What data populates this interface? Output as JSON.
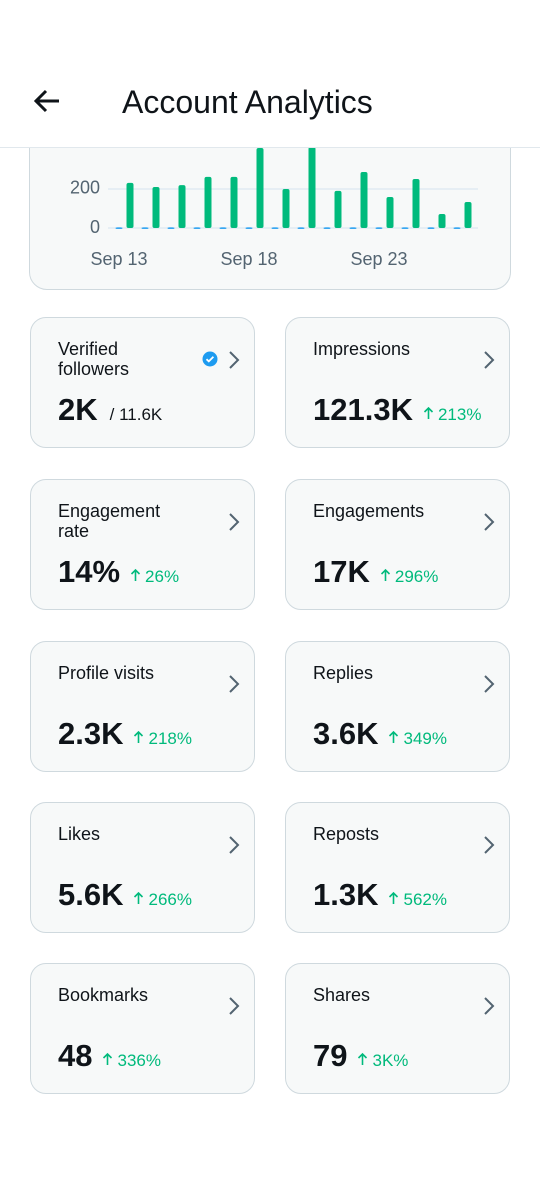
{
  "header": {
    "title": "Account Analytics"
  },
  "chart_data": {
    "type": "bar",
    "categories": [
      "Sep 13",
      null,
      null,
      null,
      null,
      "Sep 18",
      null,
      null,
      null,
      null,
      "Sep 23",
      null,
      null,
      null
    ],
    "series": [
      {
        "color": "#1d9bf0",
        "values": [
          3,
          3,
          3,
          3,
          3,
          3,
          3,
          3,
          3,
          3,
          3,
          3,
          3,
          3
        ]
      },
      {
        "color": "#00ba7c",
        "values": [
          231,
          210,
          220,
          262,
          262,
          410,
          200,
          415,
          190,
          287,
          159,
          251,
          72,
          133
        ]
      }
    ],
    "ylim": [
      0,
      410
    ],
    "yticks": [
      0,
      200
    ],
    "grid": true
  },
  "cards": [
    {
      "label": "Verified followers",
      "value": "2K",
      "total": "/ 11.6K"
    },
    {
      "label": "Impressions",
      "value": "121.3K",
      "change": "213%"
    },
    {
      "label": "Engagement rate",
      "value": "14%",
      "change": "26%"
    },
    {
      "label": "Engagements",
      "value": "17K",
      "change": "296%"
    },
    {
      "label": "Profile visits",
      "value": "2.3K",
      "change": "218%"
    },
    {
      "label": "Replies",
      "value": "3.6K",
      "change": "349%"
    },
    {
      "label": "Likes",
      "value": "5.6K",
      "change": "266%"
    },
    {
      "label": "Reposts",
      "value": "1.3K",
      "change": "562%"
    },
    {
      "label": "Bookmarks",
      "value": "48",
      "change": "336%"
    },
    {
      "label": "Shares",
      "value": "79",
      "change": "3K%"
    }
  ]
}
